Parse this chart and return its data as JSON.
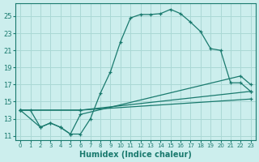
{
  "xlabel": "Humidex (Indice chaleur)",
  "bg_color": "#cceeed",
  "grid_color": "#aad8d5",
  "line_color": "#1a7a6e",
  "xlim": [
    -0.5,
    23.5
  ],
  "ylim": [
    10.5,
    26.5
  ],
  "xticks": [
    0,
    1,
    2,
    3,
    4,
    5,
    6,
    7,
    8,
    9,
    10,
    11,
    12,
    13,
    14,
    15,
    16,
    17,
    18,
    19,
    20,
    21,
    22,
    23
  ],
  "yticks": [
    11,
    13,
    15,
    17,
    19,
    21,
    23,
    25
  ],
  "line1_x": [
    0,
    1,
    2,
    3,
    4,
    5,
    6,
    7,
    8,
    9,
    10,
    11,
    12,
    13,
    14,
    15,
    16,
    17,
    18,
    19,
    20,
    21,
    22,
    23
  ],
  "line1_y": [
    14,
    14,
    12,
    12.5,
    12,
    11.2,
    11.2,
    13,
    16,
    18.5,
    22,
    24.8,
    25.2,
    25.2,
    25.3,
    25.8,
    25.3,
    24.3,
    23.2,
    21.2,
    21,
    17.2,
    17.2,
    16.2
  ],
  "line2_x": [
    0,
    2,
    3,
    4,
    5,
    6,
    22,
    23
  ],
  "line2_y": [
    14,
    12,
    12.5,
    12,
    11.2,
    13.5,
    18,
    17
  ],
  "line3_x": [
    0,
    6,
    23
  ],
  "line3_y": [
    14,
    14,
    16.2
  ],
  "line4_x": [
    0,
    6,
    23
  ],
  "line4_y": [
    14,
    14,
    15.3
  ]
}
